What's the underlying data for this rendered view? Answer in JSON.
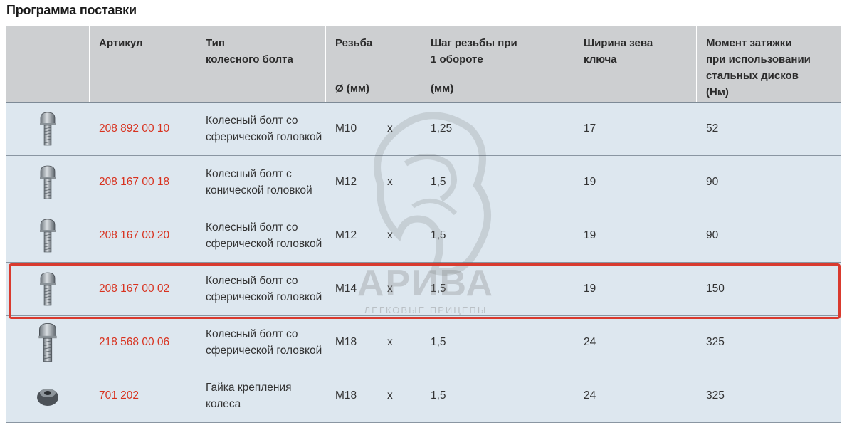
{
  "title": "Программа поставки",
  "header": {
    "article": "Артикул",
    "type_line1": "Тип",
    "type_line2": "колесного болта",
    "thread": "Резьба",
    "thread_unit": "Ø (мм)",
    "pitch_line1": "Шаг резьбы при",
    "pitch_line2": "1 обороте",
    "pitch_unit": "(мм)",
    "wrench_line1": "Ширина зева",
    "wrench_line2": "ключа",
    "torque_line1": "Момент затяжки",
    "torque_line2": "при использовании",
    "torque_line3": "стальных дисков",
    "torque_line4": "(Нм)"
  },
  "rows": [
    {
      "article": "208 892 00 10",
      "desc1": "Колесный болт со",
      "desc2": "сферической головкой",
      "thread": "M10",
      "x": "x",
      "pitch": "1,25",
      "wrench": "17",
      "torque": "52",
      "icon": "bolt-icon"
    },
    {
      "article": "208 167 00 18",
      "desc1": "Колесный болт с",
      "desc2": "конической головкой",
      "thread": "M12",
      "x": "x",
      "pitch": "1,5",
      "wrench": "19",
      "torque": "90",
      "icon": "bolt-icon"
    },
    {
      "article": "208 167 00 20",
      "desc1": "Колесный болт со",
      "desc2": "сферической головкой",
      "thread": "M12",
      "x": "x",
      "pitch": "1,5",
      "wrench": "19",
      "torque": "90",
      "icon": "bolt-icon"
    },
    {
      "article": "208 167 00 02",
      "desc1": "Колесный болт со",
      "desc2": "сферической головкой",
      "thread": "M14",
      "x": "x",
      "pitch": "1,5",
      "wrench": "19",
      "torque": "150",
      "icon": "bolt-icon"
    },
    {
      "article": "218 568 00 06",
      "desc1": "Колесный болт со",
      "desc2": "сферической головкой",
      "thread": "M18",
      "x": "x",
      "pitch": "1,5",
      "wrench": "24",
      "torque": "325",
      "icon": "bolt-icon"
    },
    {
      "article": "701 202",
      "desc1": "Гайка крепления",
      "desc2": "колеса",
      "thread": "M18",
      "x": "x",
      "pitch": "1,5",
      "wrench": "24",
      "torque": "325",
      "icon": "nut-icon"
    }
  ],
  "watermark": {
    "brand": "АРИВА",
    "tagline": "ЛЕГКОВЫЕ ПРИЦЕПЫ"
  },
  "colors": {
    "header_bg": "#cdcfd1",
    "row_bg": "#dde7ef",
    "article_red": "#d8321f",
    "highlight_red": "#d93a2e"
  }
}
